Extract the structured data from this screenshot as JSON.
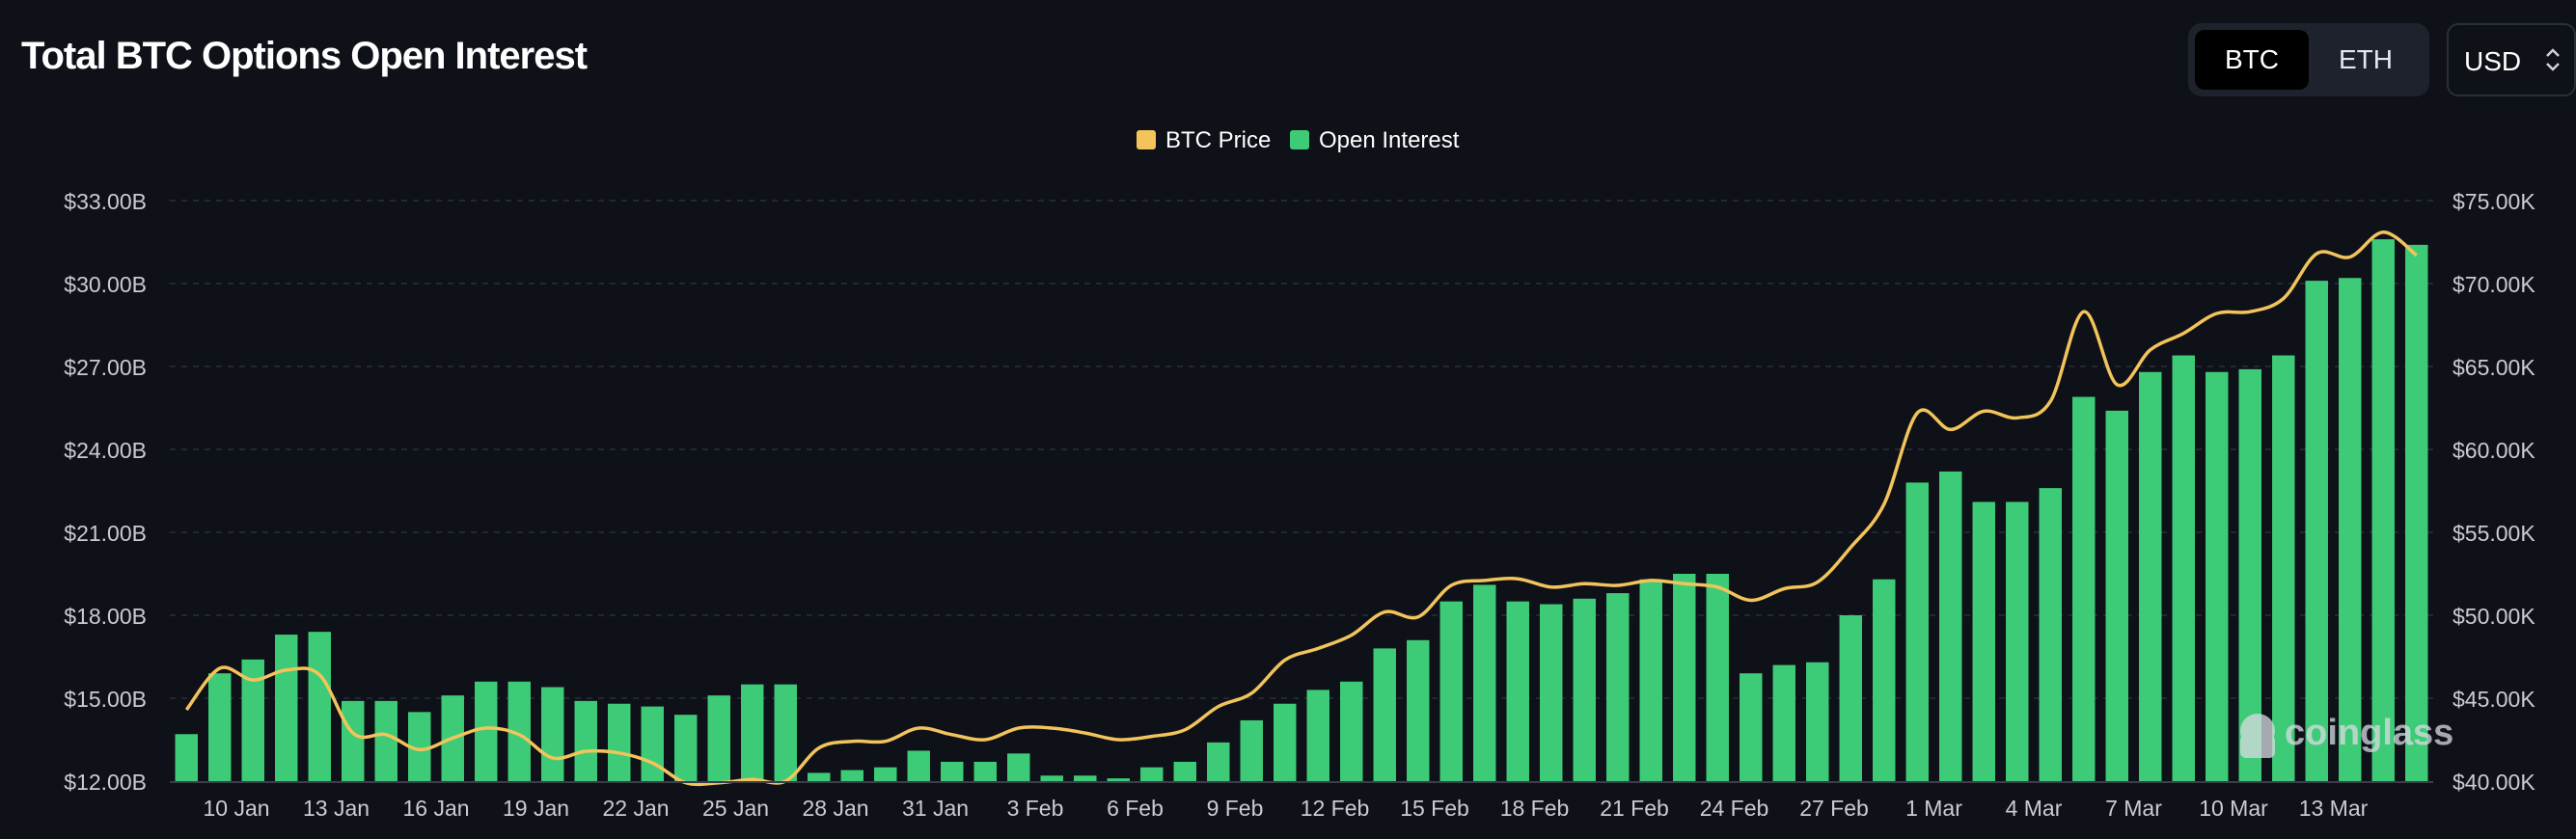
{
  "header": {
    "title": "Total BTC Options Open Interest",
    "asset_tabs": [
      {
        "label": "BTC",
        "active": true
      },
      {
        "label": "ETH",
        "active": false
      }
    ],
    "currency": {
      "value": "USD"
    }
  },
  "watermark": "coinglass",
  "colors": {
    "background": "#0e1118",
    "open_interest": "#3ecb78",
    "btc_price": "#f2c45b",
    "grid": "#2a2f3a",
    "tick_text": "#c9ccd2"
  },
  "chart_data": {
    "type": "bar+line",
    "title": "Total BTC Options Open Interest",
    "legend_placement": "top-center",
    "grid": true,
    "legend": [
      {
        "name": "BTC Price",
        "color": "#f2c45b"
      },
      {
        "name": "Open Interest",
        "color": "#3ecb78"
      }
    ],
    "x_tick_labels": [
      "10 Jan",
      "13 Jan",
      "16 Jan",
      "19 Jan",
      "22 Jan",
      "25 Jan",
      "28 Jan",
      "31 Jan",
      "3 Feb",
      "6 Feb",
      "9 Feb",
      "12 Feb",
      "15 Feb",
      "18 Feb",
      "21 Feb",
      "24 Feb",
      "27 Feb",
      "1 Mar",
      "4 Mar",
      "7 Mar",
      "10 Mar",
      "13 Mar"
    ],
    "x_tick_index": [
      2,
      5,
      8,
      11,
      14,
      17,
      20,
      23,
      26,
      29,
      32,
      35,
      38,
      41,
      44,
      47,
      50,
      53,
      56,
      59,
      62,
      65
    ],
    "y_left": {
      "min": 12,
      "max": 33,
      "ticks": [
        "$12.00B",
        "$15.00B",
        "$18.00B",
        "$21.00B",
        "$24.00B",
        "$27.00B",
        "$30.00B",
        "$33.00B"
      ],
      "tick_values": [
        12,
        15,
        18,
        21,
        24,
        27,
        30,
        33
      ]
    },
    "y_right": {
      "min": 40000,
      "max": 75000,
      "ticks": [
        "$40.00K",
        "$45.00K",
        "$50.00K",
        "$55.00K",
        "$60.00K",
        "$65.00K",
        "$70.00K",
        "$75.00K"
      ],
      "tick_values": [
        40000,
        45000,
        50000,
        55000,
        60000,
        65000,
        70000,
        75000
      ]
    },
    "series": [
      {
        "name": "Open Interest",
        "type": "bar",
        "axis": "left",
        "unit": "billion USD",
        "values": [
          13.7,
          15.9,
          16.4,
          17.3,
          17.4,
          14.9,
          14.9,
          14.5,
          15.1,
          15.6,
          15.6,
          15.4,
          14.9,
          14.8,
          14.7,
          14.4,
          15.1,
          15.5,
          15.5,
          12.3,
          12.4,
          12.5,
          13.1,
          12.7,
          12.7,
          13.0,
          12.2,
          12.2,
          12.1,
          12.5,
          12.7,
          13.4,
          14.2,
          14.8,
          15.3,
          15.6,
          16.8,
          17.1,
          18.5,
          19.1,
          18.5,
          18.4,
          18.6,
          18.8,
          19.3,
          19.5,
          19.5,
          15.9,
          16.2,
          16.3,
          18.0,
          19.3,
          22.8,
          23.2,
          22.1,
          22.1,
          22.6,
          25.9,
          25.4,
          26.8,
          27.4,
          26.8,
          26.9,
          27.4,
          30.1,
          30.2,
          31.6,
          31.4
        ]
      },
      {
        "name": "BTC Price",
        "type": "line",
        "axis": "right",
        "unit": "USD",
        "values": [
          44300,
          46800,
          46100,
          46700,
          46400,
          42900,
          42800,
          41900,
          42600,
          43200,
          42800,
          41400,
          41800,
          41700,
          41100,
          39900,
          39900,
          40100,
          40000,
          42000,
          42400,
          42400,
          43200,
          42800,
          42500,
          43200,
          43200,
          42900,
          42500,
          42700,
          43100,
          44500,
          45300,
          47300,
          48000,
          48800,
          50200,
          49900,
          51800,
          52100,
          52200,
          51700,
          51900,
          51800,
          52100,
          51900,
          51700,
          50900,
          51600,
          52000,
          54100,
          56700,
          62200,
          61200,
          62300,
          61900,
          62900,
          68300,
          63900,
          66000,
          67000,
          68200,
          68300,
          69100,
          71800,
          71600,
          73100,
          71700
        ]
      }
    ]
  }
}
